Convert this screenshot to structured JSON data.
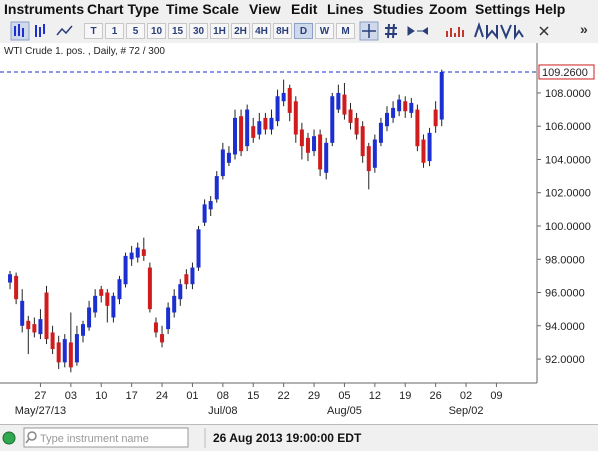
{
  "menu": [
    "Instruments",
    "Chart Type",
    "Time Scale",
    "View",
    "Edit",
    "Lines",
    "Studies",
    "Zoom",
    "Settings",
    "Help"
  ],
  "toolbar": {
    "timeframes": [
      "T",
      "1",
      "5",
      "10",
      "15",
      "30",
      "1H",
      "2H",
      "4H",
      "8H",
      "D",
      "W",
      "M"
    ],
    "more": "»"
  },
  "chart_data": {
    "type": "candlestick",
    "title": "WTI Crude 1. pos. , Daily, # 72 / 300",
    "categories": [
      null,
      null,
      null,
      null,
      null,
      "27",
      null,
      null,
      null,
      null,
      "03",
      null,
      null,
      null,
      null,
      "10",
      null,
      null,
      null,
      null,
      "17",
      null,
      null,
      null,
      null,
      "24",
      null,
      null,
      null,
      null,
      "01",
      null,
      null,
      null,
      null,
      "08",
      null,
      null,
      null,
      null,
      "15",
      null,
      null,
      null,
      null,
      "22",
      null,
      null,
      null,
      null,
      "29",
      null,
      null,
      null,
      null,
      "05",
      null,
      null,
      null,
      null,
      "12",
      null,
      null,
      null,
      null,
      "19",
      null,
      null,
      null,
      null,
      "26",
      null,
      null,
      null,
      null,
      "02",
      null,
      null,
      null,
      null,
      "09",
      null,
      null,
      null,
      null,
      null,
      null
    ],
    "period_labels": [
      null,
      null,
      null,
      null,
      null,
      "May/27/13",
      null,
      null,
      null,
      null,
      null,
      null,
      null,
      null,
      null,
      null,
      null,
      null,
      null,
      null,
      null,
      null,
      null,
      null,
      null,
      null,
      null,
      null,
      null,
      null,
      null,
      null,
      null,
      null,
      null,
      "Jul/08",
      null,
      null,
      null,
      null,
      null,
      null,
      null,
      null,
      null,
      null,
      null,
      null,
      null,
      null,
      null,
      null,
      null,
      null,
      null,
      "Aug/05",
      null,
      null,
      null,
      null,
      null,
      null,
      null,
      null,
      null,
      null,
      null,
      null,
      null,
      null,
      null,
      null,
      null,
      null,
      null,
      "Sep/02",
      null,
      null,
      null,
      null,
      null,
      null,
      null,
      null,
      null,
      null,
      null
    ],
    "open": [
      96.6,
      97.0,
      94.0,
      94.3,
      94.1,
      93.5,
      96.0,
      93.6,
      93.0,
      91.8,
      93.0,
      91.8,
      93.4,
      93.9,
      94.8,
      96.2,
      96.0,
      94.5,
      95.6,
      96.5,
      98.0,
      98.1,
      98.6,
      97.5,
      94.2,
      93.5,
      93.8,
      94.8,
      95.6,
      97.1,
      96.5,
      97.5,
      100.2,
      101.0,
      101.6,
      103.0,
      103.8,
      104.3,
      106.6,
      104.8,
      106.0,
      105.5,
      106.5,
      105.8,
      106.3,
      107.5,
      108.3,
      107.5,
      105.8,
      105.3,
      104.5,
      105.5,
      103.2,
      105.0,
      107.0,
      107.9,
      107.0,
      106.5,
      106.0,
      104.8,
      103.5,
      105.0,
      106.0,
      106.5,
      106.9,
      107.5,
      106.8,
      107.0,
      105.2,
      103.9,
      107.0,
      106.4,
      null,
      null,
      null,
      null,
      null,
      null,
      null,
      null,
      null,
      null,
      null,
      null,
      null,
      null,
      null
    ],
    "high": [
      97.3,
      97.2,
      96.2,
      94.6,
      94.5,
      95.0,
      96.4,
      94.0,
      93.4,
      93.5,
      94.8,
      94.0,
      94.3,
      95.5,
      96.2,
      96.4,
      96.2,
      96.0,
      97.0,
      98.4,
      98.8,
      99.0,
      99.3,
      97.8,
      94.5,
      94.0,
      95.4,
      96.2,
      96.8,
      97.4,
      97.8,
      100.0,
      101.6,
      101.8,
      103.3,
      105.0,
      104.8,
      107.0,
      107.0,
      107.3,
      106.5,
      106.8,
      106.8,
      107.0,
      108.2,
      108.8,
      108.5,
      107.8,
      106.2,
      105.6,
      105.8,
      105.8,
      105.3,
      108.0,
      108.5,
      108.6,
      107.4,
      106.8,
      106.3,
      105.0,
      105.5,
      106.5,
      107.2,
      107.5,
      107.9,
      107.8,
      107.7,
      107.3,
      105.5,
      105.9,
      107.5,
      109.4,
      null,
      null,
      null,
      null,
      null,
      null,
      null,
      null,
      null,
      null,
      null,
      null,
      null,
      null,
      null
    ],
    "low": [
      96.2,
      95.3,
      93.6,
      92.3,
      93.3,
      93.2,
      92.9,
      92.3,
      91.4,
      91.5,
      91.2,
      91.6,
      93.0,
      93.7,
      94.5,
      95.4,
      94.2,
      94.2,
      95.3,
      96.3,
      97.6,
      97.8,
      97.9,
      94.8,
      93.3,
      92.7,
      93.5,
      94.5,
      95.2,
      96.2,
      96.2,
      97.3,
      100.0,
      100.6,
      101.4,
      102.8,
      103.6,
      104.0,
      104.2,
      104.5,
      105.0,
      105.2,
      105.5,
      105.5,
      106.0,
      107.2,
      106.3,
      105.0,
      104.0,
      103.9,
      104.2,
      103.0,
      102.8,
      104.8,
      106.8,
      106.4,
      105.8,
      105.2,
      103.8,
      102.2,
      103.2,
      104.8,
      105.7,
      106.2,
      106.6,
      106.5,
      106.5,
      104.5,
      103.5,
      103.6,
      105.6,
      106.0,
      null,
      null,
      null,
      null,
      null,
      null,
      null,
      null,
      null,
      null,
      null,
      null,
      null,
      null,
      null
    ],
    "close": [
      97.1,
      95.6,
      95.5,
      93.8,
      93.6,
      94.4,
      93.2,
      92.6,
      91.8,
      93.2,
      91.5,
      93.5,
      94.1,
      95.1,
      95.8,
      95.8,
      95.2,
      95.8,
      96.8,
      98.2,
      98.4,
      98.7,
      98.2,
      95.0,
      93.6,
      93.0,
      95.1,
      95.8,
      96.5,
      96.5,
      97.5,
      99.8,
      101.3,
      101.5,
      103.0,
      104.6,
      104.4,
      106.5,
      104.5,
      107.0,
      105.3,
      106.3,
      105.8,
      106.5,
      107.8,
      108.0,
      106.8,
      105.5,
      104.8,
      104.4,
      105.4,
      103.4,
      105.0,
      107.8,
      108.0,
      106.7,
      106.2,
      105.5,
      104.2,
      103.3,
      105.2,
      106.2,
      106.8,
      107.1,
      107.6,
      106.9,
      107.4,
      104.8,
      103.8,
      105.6,
      106.0,
      109.26,
      null,
      null,
      null,
      null,
      null,
      null,
      null,
      null,
      null,
      null,
      null,
      null,
      null,
      null,
      null
    ],
    "up_color": "#1c2fd0",
    "down_color": "#d01c1c",
    "ylim": [
      90.56,
      109.98
    ],
    "yticks": [
      {
        "value": 92,
        "label": "92.0000"
      },
      {
        "value": 94,
        "label": "94.0000"
      },
      {
        "value": 96,
        "label": "96.0000"
      },
      {
        "value": 98,
        "label": "98.0000"
      },
      {
        "value": 100,
        "label": "100.0000"
      },
      {
        "value": 102,
        "label": "102.0000"
      },
      {
        "value": 104,
        "label": "104.0000"
      },
      {
        "value": 106,
        "label": "106.0000"
      },
      {
        "value": 108,
        "label": "108.0000"
      }
    ],
    "last_price": {
      "value": 109.26,
      "label": "109.2600"
    }
  },
  "status": {
    "placeholder": "Type instrument name",
    "time": "26 Aug 2013 19:00:00 EDT"
  }
}
